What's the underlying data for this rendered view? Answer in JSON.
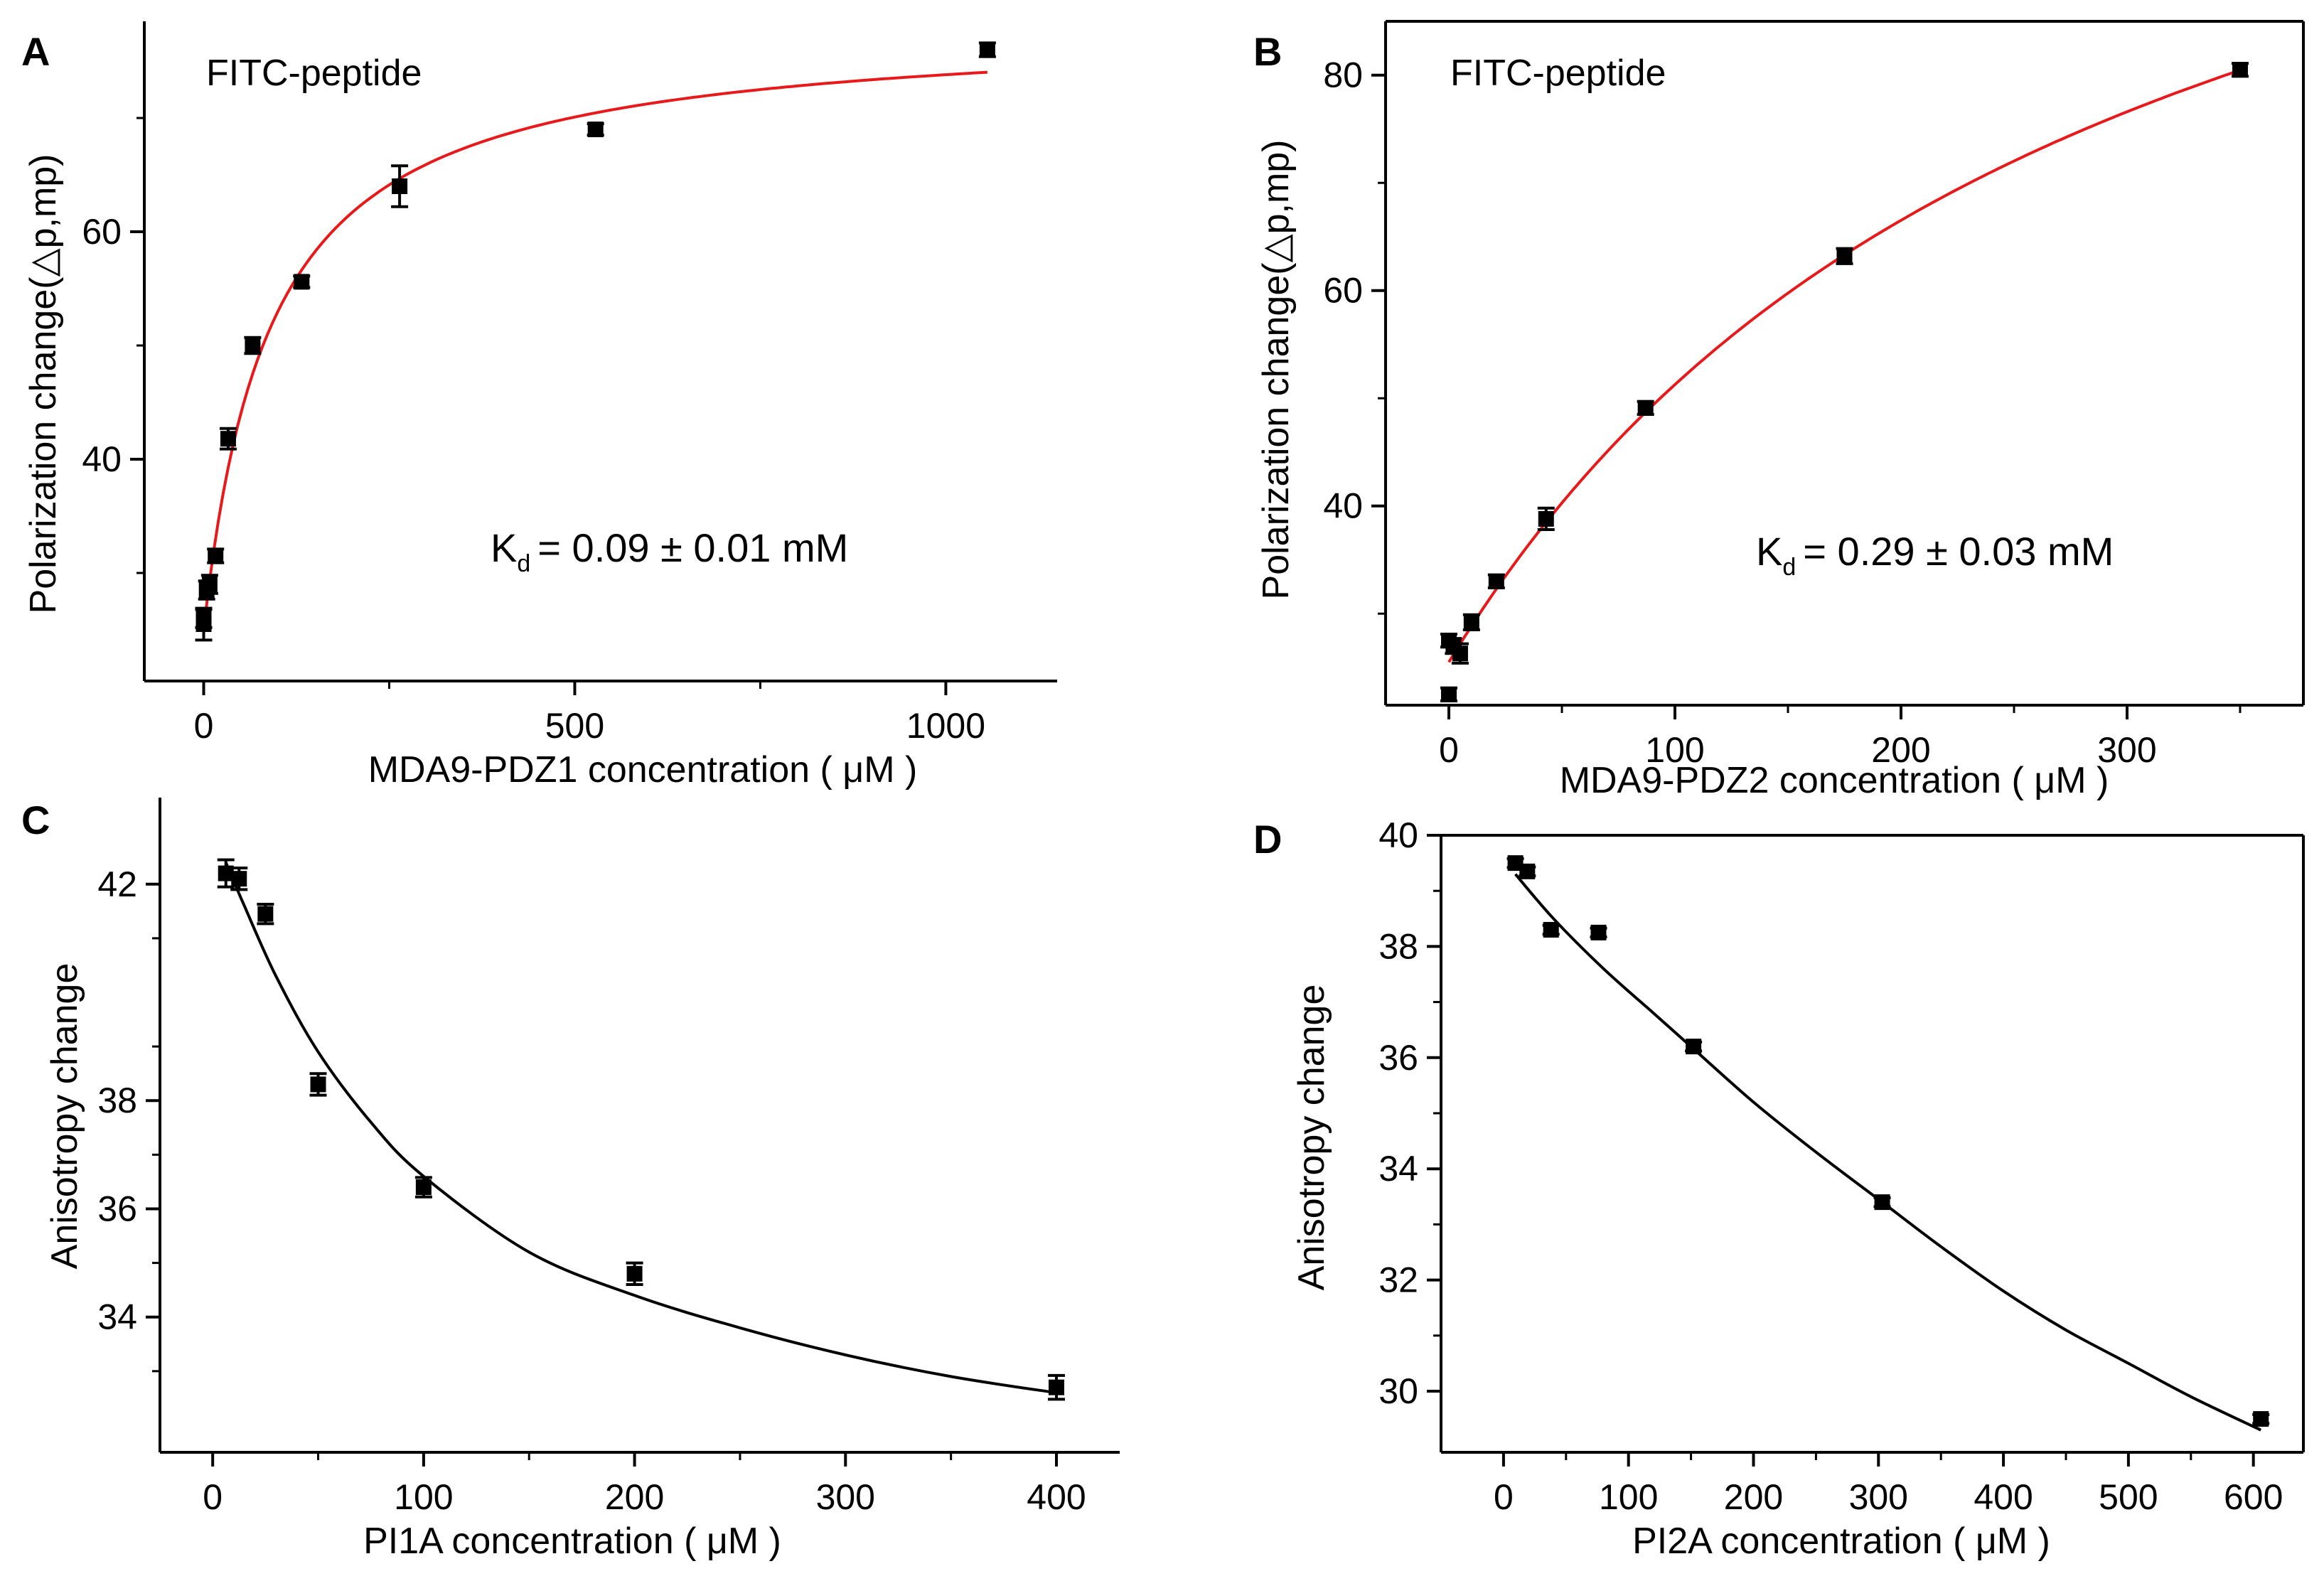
{
  "figure": {
    "panels": [
      {
        "letter": "A",
        "label": "FITC-peptide",
        "xlabel": "MDA9-PDZ1 concentration ( μM )",
        "ylabel": "Polarization change(△p,mp)",
        "kd": {
          "prefix": "K",
          "sub": "d",
          "text": "= 0.09 ± 0.01 mM"
        }
      },
      {
        "letter": "B",
        "label": "FITC-peptide",
        "xlabel": "MDA9-PDZ2 concentration ( μM )",
        "ylabel": "Polarization change(△p,mp)",
        "kd": {
          "prefix": "K",
          "sub": "d",
          "text": "= 0.29 ± 0.03 mM"
        }
      },
      {
        "letter": "C",
        "label": "",
        "xlabel": "PI1A concentration ( μM )",
        "ylabel": "Anisotropy change",
        "kd": null
      },
      {
        "letter": "D",
        "label": "",
        "xlabel": "PI2A concentration ( μM )",
        "ylabel": "Anisotropy change",
        "kd": null
      }
    ]
  },
  "colors": {
    "fit_binding": "#e8191b",
    "fit_competition": "#000000",
    "points": "#000000",
    "axes": "#000000"
  },
  "chart_data": [
    {
      "panel": "A",
      "type": "scatter",
      "title": "FITC-peptide",
      "xlabel": "MDA9-PDZ1 concentration ( μM )",
      "ylabel": "Polarization change(△p,mp)",
      "xlim": [
        -80,
        1150
      ],
      "ylim": [
        20.5,
        78.5
      ],
      "xticks": [
        0,
        500,
        1000
      ],
      "xminor": [
        250,
        750
      ],
      "yticks": [
        40,
        60
      ],
      "yminor": [
        30,
        50,
        70
      ],
      "points": [
        {
          "x": 0,
          "y": 25.5,
          "err": 1.4
        },
        {
          "x": 0,
          "y": 26.0,
          "err": 0.8
        },
        {
          "x": 4,
          "y": 28.5,
          "err": 0.8
        },
        {
          "x": 8,
          "y": 29.0,
          "err": 0.8
        },
        {
          "x": 16,
          "y": 31.5,
          "err": 0.6
        },
        {
          "x": 33,
          "y": 41.8,
          "err": 0.9
        },
        {
          "x": 66,
          "y": 50.0,
          "err": 0.7
        },
        {
          "x": 132,
          "y": 55.6,
          "err": 0.5
        },
        {
          "x": 264,
          "y": 64.0,
          "err": 1.8
        },
        {
          "x": 528,
          "y": 69.0,
          "err": 0.5
        },
        {
          "x": 1056,
          "y": 76.0,
          "err": 0.6
        }
      ],
      "fit": {
        "model": "one-site binding",
        "base": 25,
        "amplitude": 53.2,
        "kd": 90,
        "color": "#e8191b"
      },
      "annotation": "Kd = 0.09 ± 0.01 mM"
    },
    {
      "panel": "B",
      "type": "scatter",
      "title": "FITC-peptide",
      "xlabel": "MDA9-PDZ2 concentration ( μM )",
      "ylabel": "Polarization change(△p,mp)",
      "xlim": [
        -28,
        378
      ],
      "ylim": [
        21.5,
        85
      ],
      "xticks": [
        0,
        100,
        200,
        300
      ],
      "xminor": [
        50,
        150,
        250,
        350
      ],
      "yticks": [
        40,
        60,
        80
      ],
      "yminor": [
        30,
        50,
        70
      ],
      "points": [
        {
          "x": 0,
          "y": 22.5,
          "err": 0.6
        },
        {
          "x": 0,
          "y": 27.5,
          "err": 0.6
        },
        {
          "x": 2,
          "y": 27.0,
          "err": 0.7
        },
        {
          "x": 5,
          "y": 26.3,
          "err": 0.9
        },
        {
          "x": 10,
          "y": 29.2,
          "err": 0.7
        },
        {
          "x": 21,
          "y": 33.0,
          "err": 0.6
        },
        {
          "x": 43,
          "y": 38.8,
          "err": 1.0
        },
        {
          "x": 87,
          "y": 49.1,
          "err": 0.6
        },
        {
          "x": 175,
          "y": 63.2,
          "err": 0.7
        },
        {
          "x": 350,
          "y": 80.5,
          "err": 0.6
        }
      ],
      "fit": {
        "model": "one-site binding",
        "base": 25.5,
        "amplitude": 100.5,
        "kd": 290,
        "color": "#e8191b"
      },
      "annotation": "Kd = 0.29 ± 0.03 mM"
    },
    {
      "panel": "C",
      "type": "scatter",
      "title": "",
      "xlabel": "PI1A concentration ( μM )",
      "ylabel": "Anisotropy change",
      "xlim": [
        -25,
        430
      ],
      "ylim": [
        31.5,
        43.6
      ],
      "xticks": [
        0,
        100,
        200,
        300,
        400
      ],
      "xminor": [
        50,
        150,
        250,
        350
      ],
      "yticks": [
        34,
        36,
        38,
        42
      ],
      "yminor": [
        33,
        35,
        37,
        39,
        41
      ],
      "points": [
        {
          "x": 6.25,
          "y": 42.2,
          "err": 0.25
        },
        {
          "x": 12.5,
          "y": 42.1,
          "err": 0.2
        },
        {
          "x": 25,
          "y": 41.45,
          "err": 0.18
        },
        {
          "x": 50,
          "y": 38.3,
          "err": 0.2
        },
        {
          "x": 100,
          "y": 36.4,
          "err": 0.18
        },
        {
          "x": 200,
          "y": 34.8,
          "err": 0.2
        },
        {
          "x": 400,
          "y": 32.7,
          "err": 0.22
        }
      ],
      "fit": {
        "model": "exponential decay",
        "points": [
          [
            6.25,
            42.4
          ],
          [
            15,
            41.6
          ],
          [
            30,
            40.3
          ],
          [
            50,
            38.9
          ],
          [
            75,
            37.6
          ],
          [
            100,
            36.6
          ],
          [
            150,
            35.2
          ],
          [
            200,
            34.4
          ],
          [
            250,
            33.8
          ],
          [
            300,
            33.3
          ],
          [
            350,
            32.9
          ],
          [
            400,
            32.6
          ]
        ],
        "color": "#000000"
      }
    },
    {
      "panel": "D",
      "type": "scatter",
      "title": "",
      "xlabel": "PI2A concentration ( μM )",
      "ylabel": "Anisotropy change",
      "xlim": [
        -50,
        640
      ],
      "ylim": [
        28.9,
        40.0
      ],
      "xticks": [
        0,
        100,
        200,
        300,
        400,
        500,
        600
      ],
      "xminor": [
        50,
        150,
        250,
        350,
        450,
        550
      ],
      "yticks": [
        30,
        32,
        34,
        36,
        38,
        40
      ],
      "yminor": [
        31,
        33,
        35,
        37,
        39
      ],
      "points": [
        {
          "x": 9.5,
          "y": 39.5,
          "err": 0.08
        },
        {
          "x": 19,
          "y": 39.35,
          "err": 0.08
        },
        {
          "x": 38,
          "y": 38.3,
          "err": 0.08
        },
        {
          "x": 76,
          "y": 38.25,
          "err": 0.08
        },
        {
          "x": 152,
          "y": 36.2,
          "err": 0.08
        },
        {
          "x": 303,
          "y": 33.4,
          "err": 0.08
        },
        {
          "x": 606,
          "y": 29.5,
          "err": 0.08
        }
      ],
      "fit": {
        "model": "exponential decay",
        "points": [
          [
            9.5,
            39.3
          ],
          [
            40,
            38.5
          ],
          [
            80,
            37.6
          ],
          [
            120,
            36.8
          ],
          [
            150,
            36.2
          ],
          [
            200,
            35.2
          ],
          [
            250,
            34.3
          ],
          [
            303,
            33.4
          ],
          [
            350,
            32.6
          ],
          [
            400,
            31.8
          ],
          [
            450,
            31.1
          ],
          [
            500,
            30.5
          ],
          [
            550,
            29.9
          ],
          [
            606,
            29.3
          ]
        ],
        "color": "#000000"
      }
    }
  ]
}
